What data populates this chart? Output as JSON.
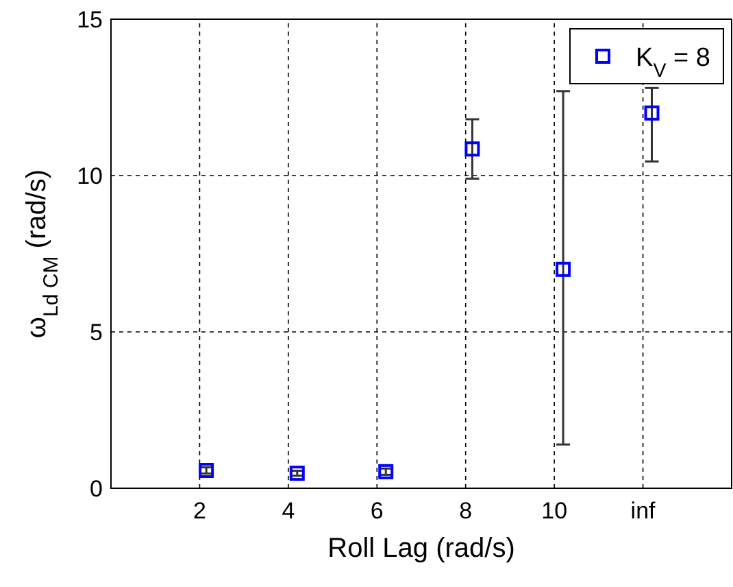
{
  "chart_data": {
    "type": "scatter",
    "xlabel": "Roll Lag (rad/s)",
    "ylabel": "ω$_{Ld CM}$ (rad/s)",
    "x": [
      2.15,
      4.2,
      6.2,
      8.15,
      10.2,
      12.2
    ],
    "series": [
      {
        "name": "K$_{V}$ = 8",
        "color": "#0000ff",
        "values": [
          0.57,
          0.48,
          0.53,
          10.85,
          7.0,
          12.0
        ],
        "errors": [
          [
            0.47,
            0.67
          ],
          [
            0.4,
            0.56
          ],
          [
            0.43,
            0.63
          ],
          [
            9.9,
            11.8
          ],
          [
            1.4,
            12.7
          ],
          [
            10.45,
            12.8
          ]
        ]
      }
    ],
    "xlim": [
      0,
      14
    ],
    "xticks": [
      2,
      4,
      6,
      8,
      10,
      {
        "value": 12,
        "label": "inf"
      }
    ],
    "ylim": [
      0,
      15
    ],
    "yticks": [
      0,
      5,
      10,
      15
    ],
    "grid": true,
    "legend": "top right",
    "marker": "square"
  }
}
